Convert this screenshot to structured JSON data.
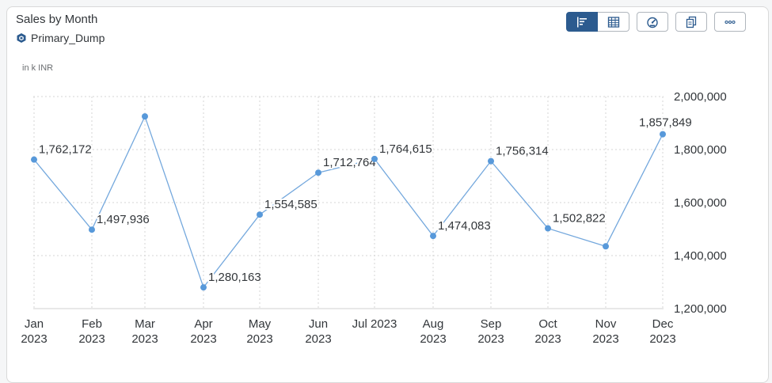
{
  "header": {
    "title": "Sales by Month",
    "source": "Primary_Dump"
  },
  "toolbar": {
    "buttons": [
      {
        "name": "chart-view",
        "icon": "bar-chart-icon",
        "active": true
      },
      {
        "name": "table-view",
        "icon": "table-icon",
        "active": false
      },
      {
        "name": "insights",
        "icon": "gauge-icon",
        "active": false
      },
      {
        "name": "copy",
        "icon": "copy-icon",
        "active": false
      },
      {
        "name": "more",
        "icon": "more-icon",
        "active": false
      }
    ]
  },
  "colors": {
    "line": "#74a8dd",
    "point": "#5899da",
    "active_button": "#2c5b8f"
  },
  "chart_data": {
    "type": "line",
    "unit_label": "in k INR",
    "categories": [
      [
        "Jan",
        "2023"
      ],
      [
        "Feb",
        "2023"
      ],
      [
        "Mar",
        "2023"
      ],
      [
        "Apr",
        "2023"
      ],
      [
        "May",
        "2023"
      ],
      [
        "Jun",
        "2023"
      ],
      [
        "Jul 2023",
        ""
      ],
      [
        "Aug",
        "2023"
      ],
      [
        "Sep",
        "2023"
      ],
      [
        "Oct",
        "2023"
      ],
      [
        "Nov",
        "2023"
      ],
      [
        "Dec",
        "2023"
      ]
    ],
    "values": [
      1762172,
      1497936,
      1925000,
      1280163,
      1554585,
      1712764,
      1764615,
      1474083,
      1756314,
      1502822,
      1435000,
      1857849
    ],
    "data_labels": [
      "1,762,172",
      "1,497,936",
      "",
      "1,280,163",
      "1,554,585",
      "1,712,764",
      "1,764,615",
      "1,474,083",
      "1,756,314",
      "1,502,822",
      "",
      "1,857,849"
    ],
    "y_axis": {
      "position": "right",
      "ylim": [
        1200000,
        2000000
      ],
      "ticks": [
        1200000,
        1400000,
        1600000,
        1800000,
        2000000
      ],
      "tick_labels": [
        "1,200,000",
        "1,400,000",
        "1,600,000",
        "1,800,000",
        "2,000,000"
      ]
    },
    "grid": true
  }
}
